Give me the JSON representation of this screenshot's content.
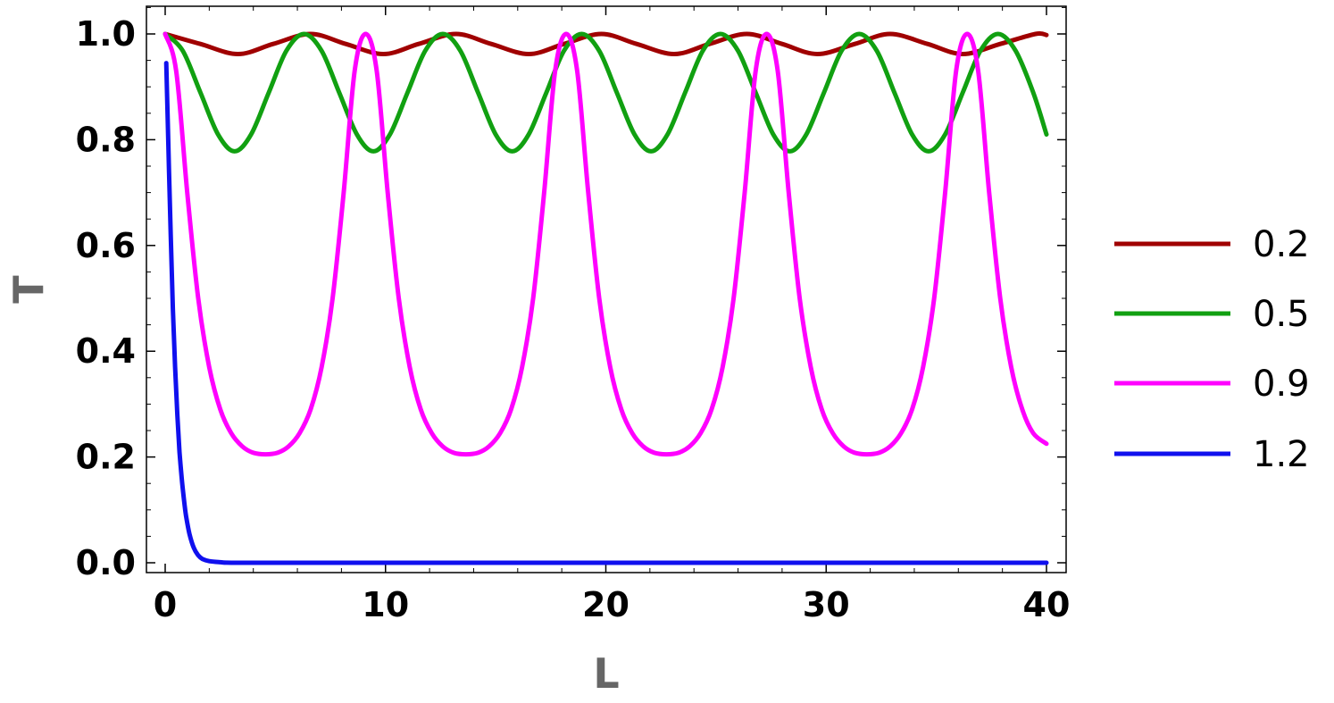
{
  "chart_data": {
    "type": "line",
    "xlabel": "L",
    "ylabel": "T",
    "xlim": [
      0,
      40
    ],
    "ylim": [
      0,
      1
    ],
    "x_ticks": [
      "0",
      "10",
      "20",
      "30",
      "40"
    ],
    "y_ticks": [
      "0.0",
      "0.2",
      "0.4",
      "0.6",
      "0.8",
      "1.0"
    ],
    "legend_position": "right",
    "grid": false,
    "series": [
      {
        "name": "0.2",
        "color": "#a00000",
        "x": [
          0,
          1.6,
          3.3,
          4.9,
          6.6,
          8.2,
          9.9,
          11.5,
          13.2,
          14.8,
          16.5,
          18.1,
          19.8,
          21.4,
          23.1,
          24.7,
          26.4,
          28.0,
          29.6,
          31.3,
          32.9,
          34.6,
          36.2,
          37.9,
          39.5,
          40
        ],
        "y": [
          1.0,
          0.981,
          0.962,
          0.981,
          1.0,
          0.981,
          0.962,
          0.981,
          1.0,
          0.981,
          0.962,
          0.981,
          1.0,
          0.981,
          0.962,
          0.981,
          1.0,
          0.981,
          0.962,
          0.981,
          1.0,
          0.981,
          0.962,
          0.981,
          1.0,
          0.998
        ]
      },
      {
        "name": "0.5",
        "color": "#11a011",
        "x": [
          0,
          0.8,
          1.6,
          2.4,
          3.15,
          3.9,
          4.7,
          5.5,
          6.3,
          7.1,
          7.9,
          8.7,
          9.45,
          10.2,
          11.0,
          11.8,
          12.6,
          13.4,
          14.2,
          15.0,
          15.75,
          16.5,
          17.3,
          18.1,
          18.9,
          19.7,
          20.5,
          21.3,
          22.05,
          22.8,
          23.6,
          24.4,
          25.2,
          26.0,
          26.8,
          27.6,
          28.35,
          29.1,
          29.9,
          30.7,
          31.5,
          32.3,
          33.1,
          33.9,
          34.65,
          35.4,
          36.2,
          37.0,
          37.8,
          38.6,
          39.4,
          40
        ],
        "y": [
          1.0,
          0.968,
          0.889,
          0.81,
          0.778,
          0.81,
          0.889,
          0.968,
          1.0,
          0.968,
          0.889,
          0.81,
          0.778,
          0.81,
          0.889,
          0.968,
          1.0,
          0.968,
          0.889,
          0.81,
          0.778,
          0.81,
          0.889,
          0.968,
          1.0,
          0.968,
          0.889,
          0.81,
          0.778,
          0.81,
          0.889,
          0.968,
          1.0,
          0.968,
          0.889,
          0.81,
          0.778,
          0.81,
          0.889,
          0.968,
          1.0,
          0.968,
          0.889,
          0.81,
          0.778,
          0.81,
          0.889,
          0.968,
          1.0,
          0.968,
          0.889,
          0.81
        ]
      },
      {
        "name": "0.9",
        "color": "#ff00ff",
        "x": [
          0,
          0.5,
          1.0,
          1.5,
          2.0,
          2.5,
          3.0,
          3.5,
          4.0,
          4.55,
          5.1,
          5.6,
          6.1,
          6.6,
          7.1,
          7.6,
          8.1,
          8.6,
          9.1,
          9.6,
          10.1,
          10.6,
          11.1,
          11.6,
          12.1,
          12.6,
          13.1,
          13.65,
          14.2,
          14.7,
          15.2,
          15.7,
          16.2,
          16.7,
          17.2,
          17.7,
          18.2,
          18.7,
          19.2,
          19.7,
          20.2,
          20.7,
          21.2,
          21.7,
          22.2,
          22.75,
          23.3,
          23.8,
          24.3,
          24.8,
          25.3,
          25.8,
          26.3,
          26.8,
          27.3,
          27.8,
          28.3,
          28.8,
          29.3,
          29.8,
          30.3,
          30.8,
          31.3,
          31.85,
          32.4,
          32.9,
          33.4,
          33.9,
          34.4,
          34.9,
          35.4,
          35.9,
          36.4,
          36.9,
          37.4,
          37.9,
          38.4,
          38.9,
          39.4,
          40
        ],
        "y": [
          1.0,
          0.93,
          0.7,
          0.5,
          0.37,
          0.29,
          0.245,
          0.22,
          0.208,
          0.205,
          0.208,
          0.22,
          0.245,
          0.29,
          0.37,
          0.5,
          0.7,
          0.93,
          1.0,
          0.93,
          0.7,
          0.5,
          0.37,
          0.29,
          0.245,
          0.22,
          0.208,
          0.205,
          0.208,
          0.22,
          0.245,
          0.29,
          0.37,
          0.5,
          0.7,
          0.93,
          1.0,
          0.93,
          0.7,
          0.5,
          0.37,
          0.29,
          0.245,
          0.22,
          0.208,
          0.205,
          0.208,
          0.22,
          0.245,
          0.29,
          0.37,
          0.5,
          0.7,
          0.93,
          1.0,
          0.93,
          0.7,
          0.5,
          0.37,
          0.29,
          0.245,
          0.22,
          0.208,
          0.205,
          0.208,
          0.22,
          0.245,
          0.29,
          0.37,
          0.5,
          0.7,
          0.93,
          1.0,
          0.93,
          0.7,
          0.5,
          0.37,
          0.29,
          0.245,
          0.225
        ]
      },
      {
        "name": "1.2",
        "color": "#1010ee",
        "x": [
          0.05,
          0.15,
          0.25,
          0.35,
          0.45,
          0.55,
          0.65,
          0.75,
          0.85,
          0.95,
          1.1,
          1.3,
          1.5,
          1.7,
          2.0,
          2.5,
          3,
          5,
          10,
          20,
          30,
          40
        ],
        "y": [
          0.945,
          0.78,
          0.62,
          0.48,
          0.37,
          0.28,
          0.21,
          0.16,
          0.12,
          0.088,
          0.055,
          0.028,
          0.014,
          0.007,
          0.003,
          0.001,
          0,
          0,
          0,
          0,
          0,
          0
        ]
      }
    ]
  }
}
